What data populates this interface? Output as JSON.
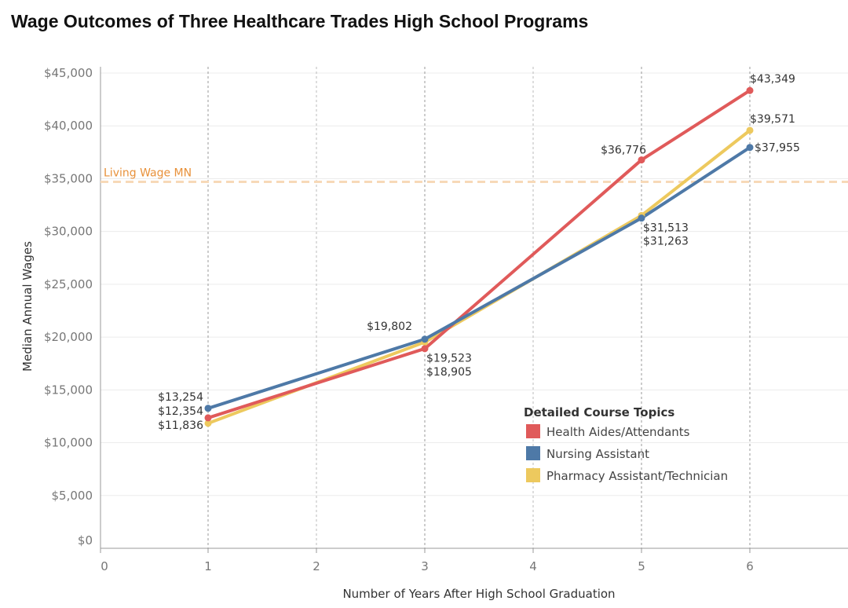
{
  "chart_data": {
    "type": "line",
    "title": "Wage Outcomes of Three Healthcare Trades High School Programs",
    "xlabel": "Number of Years After High School Graduation",
    "ylabel": "Median Annual Wages",
    "xlim": [
      0,
      6.9
    ],
    "ylim": [
      0,
      45000
    ],
    "x_ticks": [
      "0",
      "1",
      "2",
      "3",
      "4",
      "5",
      "6"
    ],
    "y_ticks": [
      "$0",
      "$5,000",
      "$10,000",
      "$15,000",
      "$20,000",
      "$25,000",
      "$30,000",
      "$35,000",
      "$40,000",
      "$45,000"
    ],
    "grid": true,
    "legend": {
      "title": "Detailed Course Topics",
      "placement": "bottom-right"
    },
    "reference_line": {
      "label": "Living Wage MN",
      "value": 34700,
      "color": "#f0a050"
    },
    "x": [
      1,
      3,
      5,
      6
    ],
    "series": [
      {
        "name": "Health Aides/Attendants",
        "color": "#e05a5a",
        "values": [
          12354,
          18905,
          36776,
          43349
        ],
        "labels": [
          "$12,354",
          "$18,905",
          "$36,776",
          "$43,349"
        ]
      },
      {
        "name": "Nursing Assistant",
        "color": "#4e79a7",
        "values": [
          13254,
          19802,
          31263,
          37955
        ],
        "labels": [
          "$13,254",
          "$19,802",
          "$31,263",
          "$37,955"
        ]
      },
      {
        "name": "Pharmacy Assistant/Technician",
        "color": "#edc95e",
        "values": [
          11836,
          19523,
          31513,
          39571
        ],
        "labels": [
          "$11,836",
          "$19,523",
          "$31,513",
          "$39,571"
        ]
      }
    ]
  }
}
